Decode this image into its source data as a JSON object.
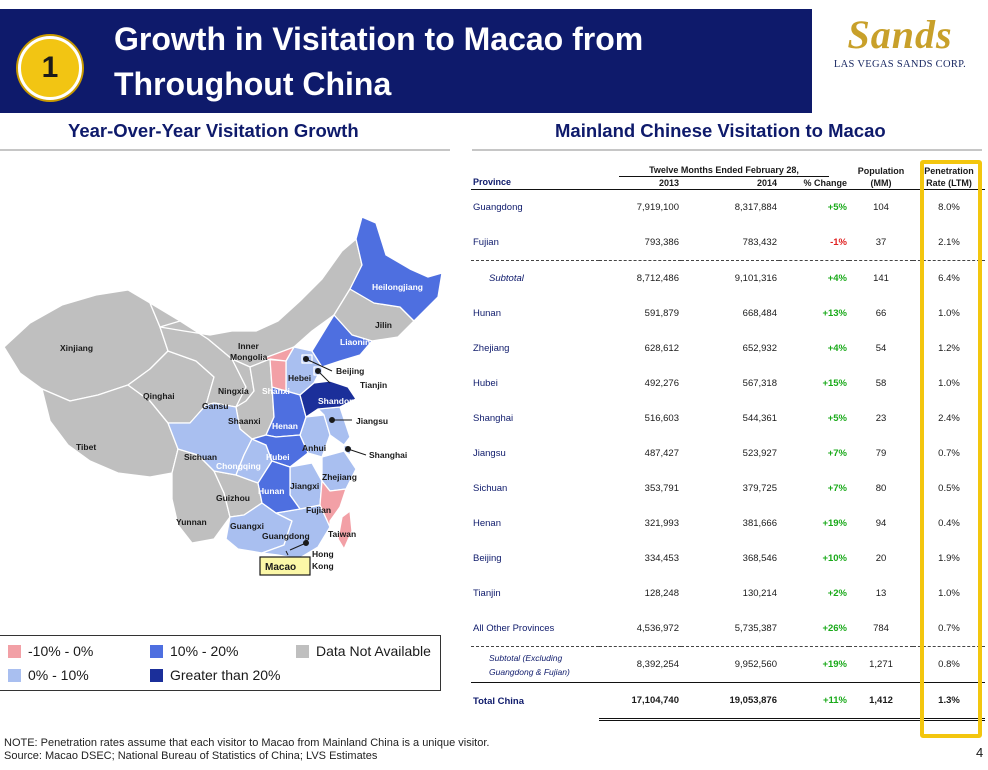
{
  "header": {
    "badge": "1",
    "title_line1": "Growth in Visitation to Macao from",
    "title_line2": "Throughout China",
    "logo_word": "Sands",
    "logo_sub": "LAS VEGAS SANDS CORP."
  },
  "left_title": "Year-Over-Year Visitation Growth",
  "right_title": "Mainland Chinese Visitation to Macao",
  "map_labels": {
    "heilongjiang": "Heilongjiang",
    "jilin": "Jilin",
    "liaoning": "Liaoning",
    "xinjiang": "Xinjiang",
    "inner1": "Inner",
    "inner2": "Mongolia",
    "beijing": "Beijing",
    "tianjin": "Tianjin",
    "hebei": "Hebei",
    "qinghai": "Qinghai",
    "ningxia": "Ningxia",
    "shanxi": "Shanxi",
    "shandong": "Shandong",
    "gansu": "Gansu",
    "shaanxi": "Shaanxi",
    "henan": "Henan",
    "jiangsu": "Jiangsu",
    "tibet": "Tibet",
    "anhui": "Anhui",
    "shanghai": "Shanghai",
    "sichuan": "Sichuan",
    "hubei": "Hubei",
    "chongqing": "Chongqing",
    "zhejiang": "Zhejiang",
    "jiangxi": "Jiangxi",
    "hunan": "Hunan",
    "guizhou": "Guizhou",
    "fujian": "Fujian",
    "yunnan": "Yunnan",
    "guangxi": "Guangxi",
    "taiwan": "Taiwan",
    "guangdong": "Guangdong",
    "hong": "Hong",
    "kong": "Kong",
    "macao": "Macao"
  },
  "legend": {
    "a": "-10% - 0%",
    "b": "0% - 10%",
    "c": "10% - 20%",
    "d": "Greater than 20%",
    "e": "Data Not Available"
  },
  "colors": {
    "banner": "#0e1a6b",
    "badge": "#f2c513",
    "gray": "#bfbfbf",
    "pink": "#f2a0a6",
    "light_blue": "#a9bff0",
    "mid_blue": "#4e6fe0",
    "dark_blue": "#1b2f9a",
    "positive": "#1aaa1a",
    "negative": "#e02020",
    "highlight": "#f3c60e"
  },
  "table": {
    "period": "Twelve Months Ended February 28,",
    "headers": {
      "province": "Province",
      "y2013": "2013",
      "y2014": "2014",
      "change": "% Change",
      "pop1": "Population",
      "pop2": "(MM)",
      "pen1": "Penetration",
      "pen2": "Rate (LTM)"
    },
    "rows": [
      {
        "province": "Guangdong",
        "y2013": "7,919,100",
        "y2014": "8,317,884",
        "change": "+5%",
        "population": "104",
        "penetration": "8.0%"
      },
      {
        "province": "Fujian",
        "y2013": "793,386",
        "y2014": "783,432",
        "change": "-1%",
        "population": "37",
        "penetration": "2.1%"
      },
      {
        "province": "Subtotal",
        "y2013": "8,712,486",
        "y2014": "9,101,316",
        "change": "+4%",
        "population": "141",
        "penetration": "6.4%"
      },
      {
        "province": "Hunan",
        "y2013": "591,879",
        "y2014": "668,484",
        "change": "+13%",
        "population": "66",
        "penetration": "1.0%"
      },
      {
        "province": "Zhejiang",
        "y2013": "628,612",
        "y2014": "652,932",
        "change": "+4%",
        "population": "54",
        "penetration": "1.2%"
      },
      {
        "province": "Hubei",
        "y2013": "492,276",
        "y2014": "567,318",
        "change": "+15%",
        "population": "58",
        "penetration": "1.0%"
      },
      {
        "province": "Shanghai",
        "y2013": "516,603",
        "y2014": "544,361",
        "change": "+5%",
        "population": "23",
        "penetration": "2.4%"
      },
      {
        "province": "Jiangsu",
        "y2013": "487,427",
        "y2014": "523,927",
        "change": "+7%",
        "population": "79",
        "penetration": "0.7%"
      },
      {
        "province": "Sichuan",
        "y2013": "353,791",
        "y2014": "379,725",
        "change": "+7%",
        "population": "80",
        "penetration": "0.5%"
      },
      {
        "province": "Henan",
        "y2013": "321,993",
        "y2014": "381,666",
        "change": "+19%",
        "population": "94",
        "penetration": "0.4%"
      },
      {
        "province": "Beijing",
        "y2013": "334,453",
        "y2014": "368,546",
        "change": "+10%",
        "population": "20",
        "penetration": "1.9%"
      },
      {
        "province": "Tianjin",
        "y2013": "128,248",
        "y2014": "130,214",
        "change": "+2%",
        "population": "13",
        "penetration": "1.0%"
      },
      {
        "province": "All Other Provinces",
        "y2013": "4,536,972",
        "y2014": "5,735,387",
        "change": "+26%",
        "population": "784",
        "penetration": "0.7%"
      },
      {
        "province_line1": "Subtotal (Excluding",
        "province_line2": "Guangdong & Fujian)",
        "y2013": "8,392,254",
        "y2014": "9,952,560",
        "change": "+19%",
        "population": "1,271",
        "penetration": "0.8%"
      },
      {
        "province": "Total China",
        "y2013": "17,104,740",
        "y2014": "19,053,876",
        "change": "+11%",
        "population": "1,412",
        "penetration": "1.3%"
      }
    ]
  },
  "footnote": {
    "note": "NOTE: Penetration rates assume that each visitor to Macao from Mainland China is a unique visitor.",
    "source": "Source: Macao DSEC; National Bureau of Statistics of China; LVS Estimates"
  },
  "page_number": "4"
}
